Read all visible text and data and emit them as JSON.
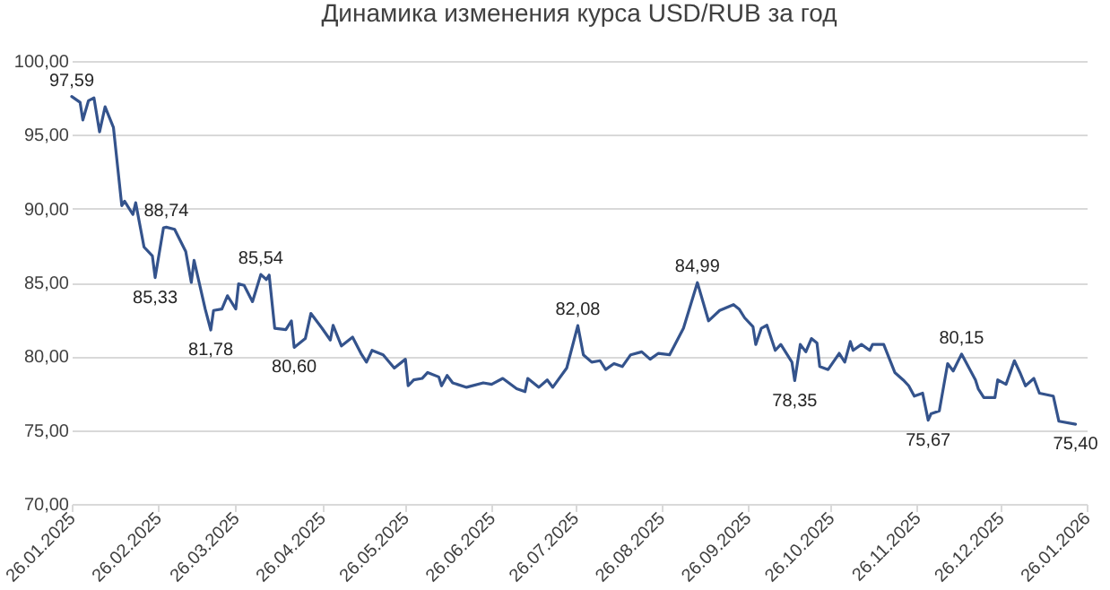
{
  "chart_data": {
    "type": "line",
    "title": "Динамика изменения курса USD/RUB за год",
    "x": [
      "2025-01-26",
      "2025-01-29",
      "2025-01-30",
      "2025-02-01",
      "2025-02-03",
      "2025-02-05",
      "2025-02-07",
      "2025-02-10",
      "2025-02-13",
      "2025-02-14",
      "2025-02-17",
      "2025-02-18",
      "2025-02-21",
      "2025-02-24",
      "2025-02-25",
      "2025-02-28",
      "2025-03-01",
      "2025-03-04",
      "2025-03-08",
      "2025-03-10",
      "2025-03-11",
      "2025-03-15",
      "2025-03-17",
      "2025-03-18",
      "2025-03-21",
      "2025-03-23",
      "2025-03-26",
      "2025-03-27",
      "2025-03-29",
      "2025-04-01",
      "2025-04-04",
      "2025-04-06",
      "2025-04-07",
      "2025-04-09",
      "2025-04-13",
      "2025-04-15",
      "2025-04-16",
      "2025-04-20",
      "2025-04-22",
      "2025-04-26",
      "2025-04-29",
      "2025-04-30",
      "2025-05-03",
      "2025-05-07",
      "2025-05-10",
      "2025-05-12",
      "2025-05-14",
      "2025-05-18",
      "2025-05-22",
      "2025-05-26",
      "2025-05-27",
      "2025-05-29",
      "2025-06-01",
      "2025-06-03",
      "2025-06-07",
      "2025-06-08",
      "2025-06-10",
      "2025-06-12",
      "2025-06-17",
      "2025-06-23",
      "2025-06-26",
      "2025-06-30",
      "2025-07-05",
      "2025-07-08",
      "2025-07-09",
      "2025-07-13",
      "2025-07-16",
      "2025-07-18",
      "2025-07-23",
      "2025-07-27",
      "2025-07-29",
      "2025-08-01",
      "2025-08-04",
      "2025-08-06",
      "2025-08-09",
      "2025-08-12",
      "2025-08-15",
      "2025-08-19",
      "2025-08-22",
      "2025-08-25",
      "2025-08-29",
      "2025-09-03",
      "2025-09-08",
      "2025-09-12",
      "2025-09-16",
      "2025-09-21",
      "2025-09-23",
      "2025-09-25",
      "2025-09-28",
      "2025-09-29",
      "2025-10-01",
      "2025-10-03",
      "2025-10-06",
      "2025-10-08",
      "2025-10-12",
      "2025-10-13",
      "2025-10-15",
      "2025-10-17",
      "2025-10-19",
      "2025-10-21",
      "2025-10-22",
      "2025-10-25",
      "2025-10-29",
      "2025-10-31",
      "2025-11-02",
      "2025-11-03",
      "2025-11-06",
      "2025-11-09",
      "2025-11-10",
      "2025-11-14",
      "2025-11-18",
      "2025-11-21",
      "2025-11-23",
      "2025-11-25",
      "2025-11-28",
      "2025-11-30",
      "2025-12-01",
      "2025-12-04",
      "2025-12-07",
      "2025-12-09",
      "2025-12-12",
      "2025-12-17",
      "2025-12-18",
      "2025-12-20",
      "2025-12-24",
      "2025-12-25",
      "2025-12-28",
      "2025-12-31",
      "2026-01-02",
      "2026-01-04",
      "2026-01-07",
      "2026-01-09",
      "2026-01-14",
      "2026-01-16",
      "2026-01-22"
    ],
    "series": [
      {
        "color": "#34538c",
        "values": [
          97.59,
          97.2,
          96.0,
          97.3,
          97.5,
          95.2,
          96.9,
          95.5,
          90.2,
          90.5,
          89.6,
          90.4,
          87.4,
          86.8,
          85.33,
          88.7,
          88.74,
          88.6,
          87.1,
          85.0,
          86.5,
          83.2,
          81.78,
          83.1,
          83.2,
          84.1,
          83.2,
          84.9,
          84.8,
          83.7,
          85.54,
          85.2,
          85.5,
          81.9,
          81.8,
          82.4,
          80.6,
          81.2,
          82.9,
          81.9,
          81.1,
          82.1,
          80.7,
          81.3,
          80.2,
          79.6,
          80.4,
          80.1,
          79.2,
          79.8,
          78.0,
          78.4,
          78.5,
          78.9,
          78.6,
          78.0,
          78.7,
          78.2,
          77.9,
          78.2,
          78.1,
          78.5,
          77.8,
          77.6,
          78.5,
          77.9,
          78.4,
          77.9,
          79.2,
          82.08,
          80.1,
          79.6,
          79.7,
          79.1,
          79.5,
          79.3,
          80.1,
          80.3,
          79.8,
          80.2,
          80.1,
          81.9,
          84.99,
          82.4,
          83.1,
          83.5,
          83.2,
          82.6,
          82.0,
          80.8,
          81.9,
          82.1,
          80.4,
          80.8,
          79.6,
          78.35,
          80.8,
          80.3,
          81.2,
          80.9,
          79.3,
          79.1,
          80.2,
          79.6,
          81.0,
          80.4,
          80.8,
          80.4,
          80.8,
          80.8,
          78.9,
          78.4,
          78.0,
          77.3,
          77.5,
          75.67,
          76.1,
          76.3,
          79.5,
          79.0,
          80.15,
          78.4,
          77.8,
          77.2,
          77.2,
          78.4,
          78.1,
          79.7,
          78.9,
          78.0,
          78.5,
          77.5,
          77.3,
          75.6,
          75.4
        ]
      }
    ],
    "annotations": [
      {
        "text": "97,59",
        "x": "2025-01-26",
        "y": 97.59
      },
      {
        "text": "85,33",
        "x": "2025-02-25",
        "y": 85.33
      },
      {
        "text": "88,74",
        "x": "2025-03-01",
        "y": 88.74
      },
      {
        "text": "81,78",
        "x": "2025-03-17",
        "y": 81.78
      },
      {
        "text": "85,54",
        "x": "2025-04-04",
        "y": 85.54
      },
      {
        "text": "80,60",
        "x": "2025-04-16",
        "y": 80.6
      },
      {
        "text": "82,08",
        "x": "2025-07-27",
        "y": 82.08
      },
      {
        "text": "84,99",
        "x": "2025-09-08",
        "y": 84.99
      },
      {
        "text": "78,35",
        "x": "2025-10-13",
        "y": 78.35
      },
      {
        "text": "75,67",
        "x": "2025-11-30",
        "y": 75.67
      },
      {
        "text": "80,15",
        "x": "2025-12-12",
        "y": 80.15
      },
      {
        "text": "75,40",
        "x": "2026-01-22",
        "y": 75.4
      }
    ],
    "xlim": [
      "2025-01-26",
      "2026-01-26"
    ],
    "xticks": [
      {
        "value": "2025-01-26",
        "label": "26.01.2025"
      },
      {
        "value": "2025-02-26",
        "label": "26.02.2025"
      },
      {
        "value": "2025-03-26",
        "label": "26.03.2025"
      },
      {
        "value": "2025-04-26",
        "label": "26.04.2025"
      },
      {
        "value": "2025-05-26",
        "label": "26.05.2025"
      },
      {
        "value": "2025-06-26",
        "label": "26.06.2025"
      },
      {
        "value": "2025-07-26",
        "label": "26.07.2025"
      },
      {
        "value": "2025-08-26",
        "label": "26.08.2025"
      },
      {
        "value": "2025-09-26",
        "label": "26.09.2025"
      },
      {
        "value": "2025-10-26",
        "label": "26.10.2025"
      },
      {
        "value": "2025-11-26",
        "label": "26.11.2025"
      },
      {
        "value": "2025-12-26",
        "label": "26.12.2025"
      },
      {
        "value": "2026-01-26",
        "label": "26.01.2026"
      }
    ],
    "ylim": [
      70,
      100
    ],
    "yticks": [
      {
        "value": 70,
        "label": "70,00"
      },
      {
        "value": 75,
        "label": "75,00"
      },
      {
        "value": 80,
        "label": "80,00"
      },
      {
        "value": 85,
        "label": "85,00"
      },
      {
        "value": 90,
        "label": "90,00"
      },
      {
        "value": 95,
        "label": "95,00"
      },
      {
        "value": 100,
        "label": "100,00"
      }
    ],
    "grid": "y",
    "marker": "none",
    "line_style": "solid"
  }
}
